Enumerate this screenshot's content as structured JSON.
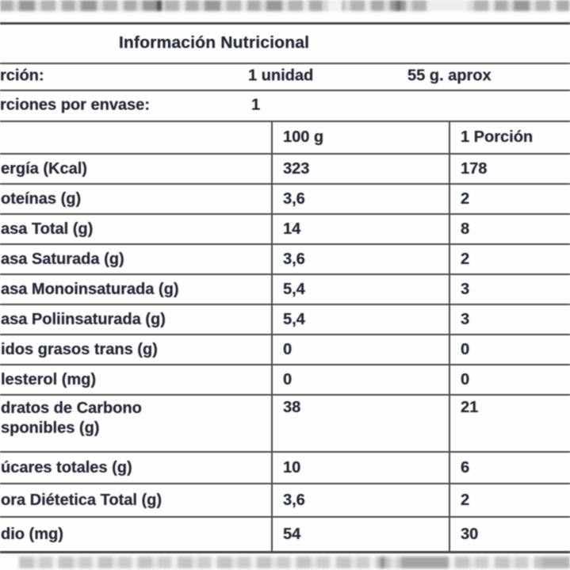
{
  "title": "Información Nutricional",
  "serving": {
    "label": "rción:",
    "unit_value": "1 unidad",
    "weight_value": "55 g. aprox"
  },
  "servings_per_pack": {
    "label": "rciones por envase:",
    "value": "1"
  },
  "columns": {
    "per_100g": "100 g",
    "per_portion": "1 Porción"
  },
  "rows": [
    {
      "label": "ergía (Kcal)",
      "per100": "323",
      "portion": "178"
    },
    {
      "label": "oteínas (g)",
      "per100": "3,6",
      "portion": "2"
    },
    {
      "label": "asa Total (g)",
      "per100": "14",
      "portion": "8"
    },
    {
      "label": "asa Saturada (g)",
      "per100": "3,6",
      "portion": "2"
    },
    {
      "label": "asa Monoinsaturada (g)",
      "per100": "5,4",
      "portion": "3"
    },
    {
      "label": "asa Poliinsaturada (g)",
      "per100": "5,4",
      "portion": "3"
    },
    {
      "label": "idos grasos trans (g)",
      "per100": "0",
      "portion": "0"
    },
    {
      "label": "lesterol (mg)",
      "per100": "0",
      "portion": "0"
    },
    {
      "label": "dratos de Carbono\nsponibles (g)",
      "per100": "38",
      "portion": "21"
    },
    {
      "label": "úcares totales (g)",
      "per100": "10",
      "portion": "6"
    },
    {
      "label": "ora Diétetica Total (g)",
      "per100": "3,6",
      "portion": "2"
    },
    {
      "label": "dio (mg)",
      "per100": "54",
      "portion": "30"
    }
  ],
  "colors": {
    "border": "#4a4a4a",
    "text": "#242834"
  }
}
